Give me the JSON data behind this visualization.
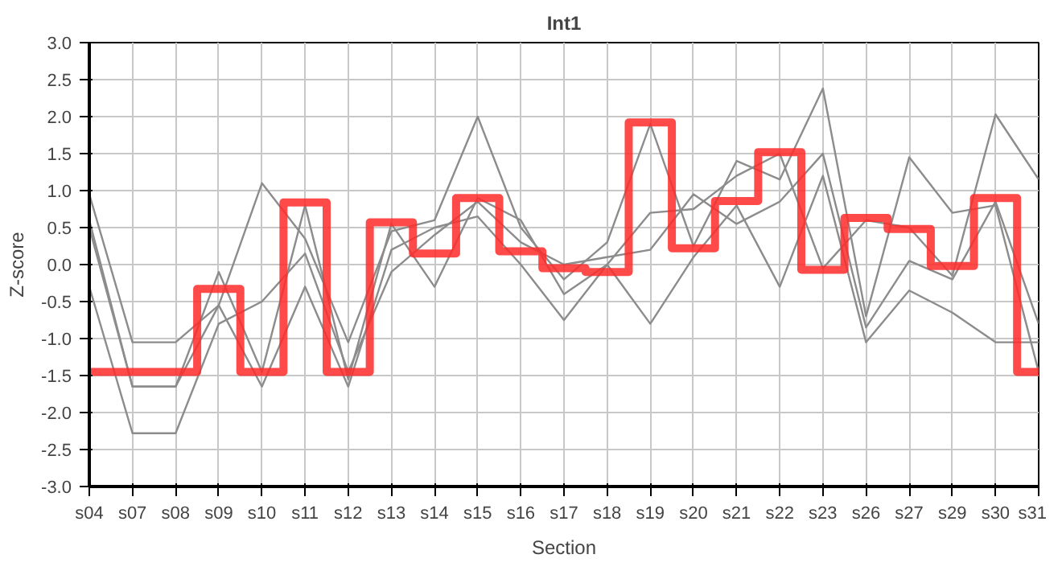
{
  "chart_data": {
    "type": "line",
    "title": "Int1",
    "xlabel": "Section",
    "ylabel": "Z-score",
    "categories": [
      "s04",
      "s07",
      "s08",
      "s09",
      "s10",
      "s11",
      "s12",
      "s13",
      "s14",
      "s15",
      "s16",
      "s17",
      "s18",
      "s19",
      "s20",
      "s21",
      "s22",
      "s23",
      "s26",
      "s27",
      "s29",
      "s30",
      "s31"
    ],
    "ylim": [
      -3,
      3
    ],
    "yticks": [
      {
        "value": -3,
        "label": "-3.0"
      },
      {
        "value": -2.5,
        "label": "-2.5"
      },
      {
        "value": -2,
        "label": "-2.0"
      },
      {
        "value": -1.5,
        "label": "-1.5"
      },
      {
        "value": -1,
        "label": "-1.0"
      },
      {
        "value": -0.5,
        "label": "-0.5"
      },
      {
        "value": 0,
        "label": "0.0"
      },
      {
        "value": 0.5,
        "label": "0.5"
      },
      {
        "value": 1,
        "label": "1.0"
      },
      {
        "value": 1.5,
        "label": "1.5"
      },
      {
        "value": 2,
        "label": "2.0"
      },
      {
        "value": 2.5,
        "label": "2.5"
      },
      {
        "value": 3,
        "label": "3.0"
      }
    ],
    "grid": true,
    "marker": "none",
    "series": [
      {
        "color": "#8c8c8c",
        "values": [
          0.95,
          -1.05,
          -1.05,
          -0.55,
          1.1,
          0.35,
          -1.05,
          0.45,
          0.6,
          2.0,
          0.5,
          -0.2,
          0.3,
          1.9,
          0.25,
          1.4,
          1.15,
          2.38,
          -0.7,
          1.45,
          0.7,
          0.8,
          -1.45
        ]
      },
      {
        "color": "#8c8c8c",
        "values": [
          0.6,
          -1.65,
          -1.65,
          -0.1,
          -1.45,
          0.8,
          -1.55,
          0.55,
          -0.3,
          0.9,
          0.6,
          -0.4,
          0.0,
          0.7,
          0.75,
          1.2,
          1.5,
          -0.05,
          0.6,
          0.5,
          -0.15,
          2.03,
          1.15
        ]
      },
      {
        "color": "#8c8c8c",
        "values": [
          -0.3,
          -2.28,
          -2.28,
          -0.8,
          -0.5,
          0.15,
          -1.45,
          -0.1,
          0.4,
          0.85,
          0.3,
          0.0,
          0.1,
          0.2,
          0.95,
          0.55,
          0.85,
          1.5,
          -0.85,
          0.05,
          -0.2,
          0.85,
          -0.8
        ]
      },
      {
        "color": "#8c8c8c",
        "values": [
          0.5,
          -1.65,
          -1.65,
          -0.55,
          -1.65,
          -0.3,
          -1.65,
          0.2,
          0.5,
          0.65,
          0.0,
          -0.75,
          0.0,
          -0.8,
          0.1,
          0.8,
          -0.3,
          1.2,
          -1.05,
          -0.35,
          -0.65,
          -1.05,
          -1.05
        ]
      },
      {
        "type": "step",
        "color": "#ff2a2a",
        "values": [
          -1.45,
          -1.45,
          -1.45,
          -0.33,
          -1.45,
          0.84,
          -1.45,
          0.57,
          0.15,
          0.9,
          0.18,
          -0.05,
          -0.1,
          1.92,
          0.22,
          0.86,
          1.52,
          -0.07,
          0.63,
          0.48,
          -0.02,
          0.9,
          -1.45
        ]
      }
    ]
  }
}
